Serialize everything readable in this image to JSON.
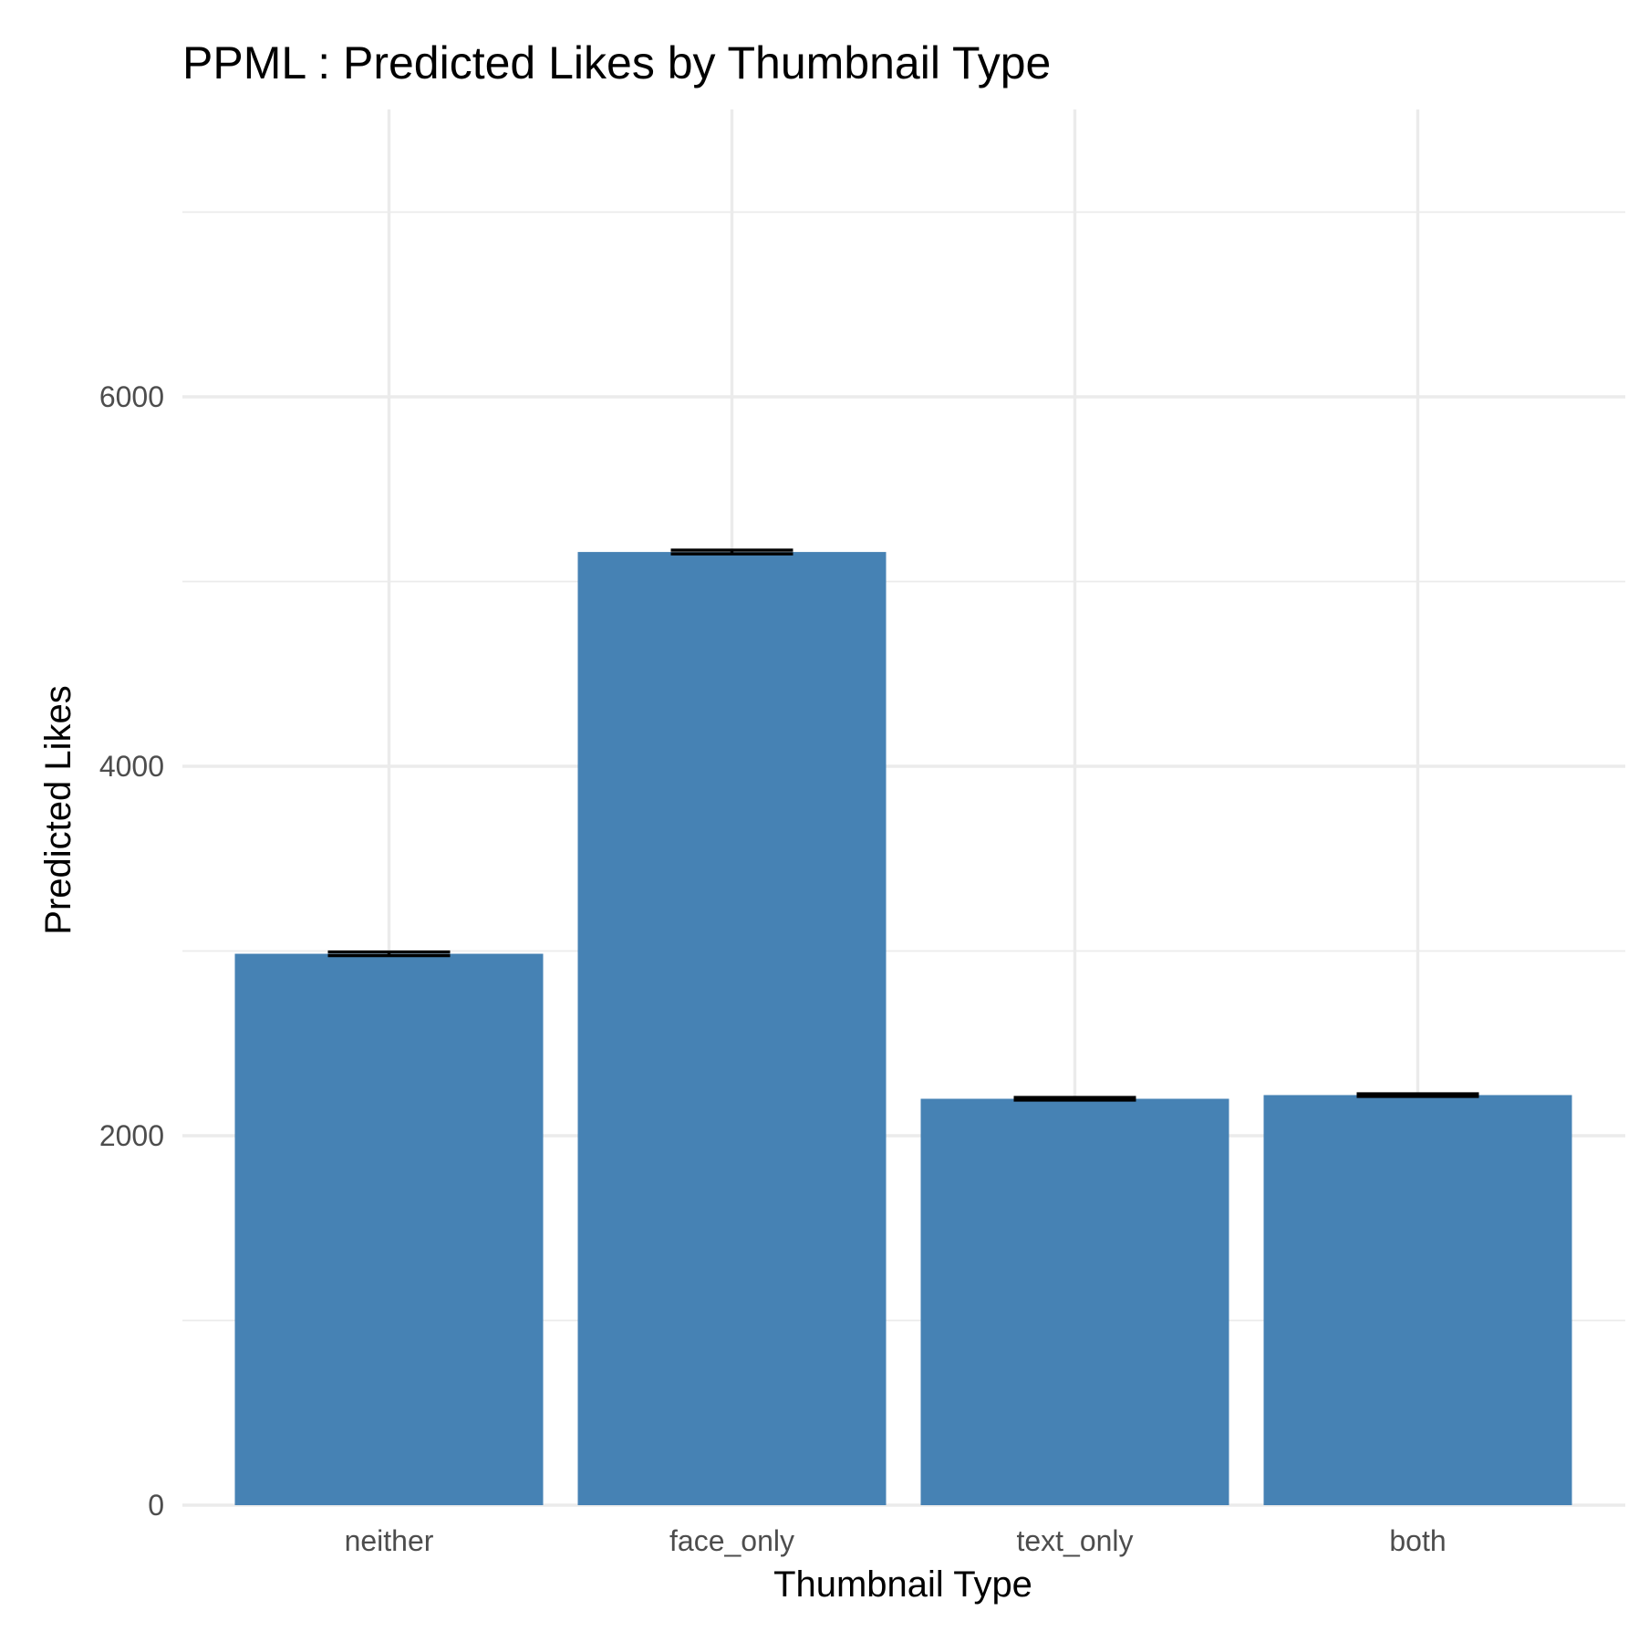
{
  "chart_data": {
    "type": "bar",
    "title": "PPML : Predicted Likes by Thumbnail Type",
    "xlabel": "Thumbnail Type",
    "ylabel": "Predicted Likes",
    "categories": [
      "neither",
      "face_only",
      "text_only",
      "both"
    ],
    "values": [
      2985,
      5160,
      2200,
      2220
    ],
    "error_bars": {
      "lower": [
        2975,
        5150,
        2193,
        2213
      ],
      "upper": [
        2995,
        5170,
        2207,
        2227
      ]
    },
    "ylim": [
      0,
      7000
    ],
    "yticks": [
      0,
      2000,
      4000,
      6000
    ],
    "ytick_labels": [
      "0",
      "2000",
      "4000",
      "6000"
    ],
    "grid": true,
    "legend": "none",
    "bar_color": "#4682B4",
    "errorbar_color": "#000000",
    "grid_color": "#EBEBEB"
  }
}
